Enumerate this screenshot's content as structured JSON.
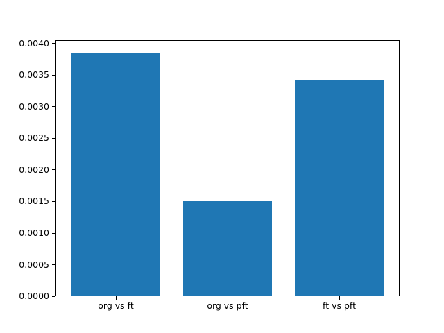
{
  "chart_data": {
    "type": "bar",
    "title": "",
    "xlabel": "",
    "ylabel": "",
    "categories": [
      "org vs ft",
      "org vs pft",
      "ft vs pft"
    ],
    "values": [
      0.00386,
      0.0015,
      0.00343
    ],
    "bar_color": "#1f77b4",
    "background_color": "#ffffff",
    "spine_color": "#000000",
    "bar_width": 0.8,
    "xlim": [
      -0.54,
      2.54
    ],
    "ylim": [
      0,
      0.004053
    ],
    "yticks": [
      0.0,
      0.0005,
      0.001,
      0.0015,
      0.002,
      0.0025,
      0.003,
      0.0035,
      0.004
    ],
    "ytick_labels": [
      "0.0000",
      "0.0005",
      "0.0010",
      "0.0015",
      "0.0020",
      "0.0025",
      "0.0030",
      "0.0035",
      "0.0040"
    ],
    "grid": false,
    "legend": null
  }
}
